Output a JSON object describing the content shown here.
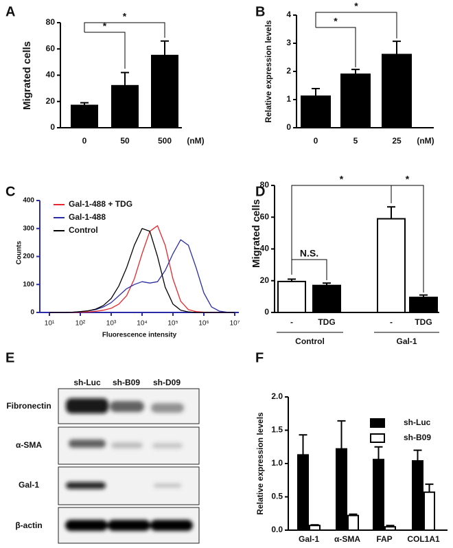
{
  "chart_data": [
    {
      "type": "bar",
      "panel": "A",
      "ylabel": "Migrated cells",
      "x_unit": "(nM)",
      "categories": [
        "0",
        "50",
        "500"
      ],
      "values": [
        17,
        32,
        55
      ],
      "errors": [
        2,
        10,
        11
      ],
      "color": "#000000",
      "ylim": [
        0,
        80
      ],
      "yticks": [
        0,
        20,
        40,
        60,
        80
      ],
      "grid": false,
      "annotations": [
        "*",
        "*"
      ]
    },
    {
      "type": "bar",
      "panel": "B",
      "ylabel": "Relative expression levels",
      "x_unit": "(nM)",
      "categories": [
        "0",
        "5",
        "25"
      ],
      "values": [
        1.12,
        1.9,
        2.6
      ],
      "errors": [
        0.27,
        0.17,
        0.47
      ],
      "color": "#000000",
      "ylim": [
        0,
        4
      ],
      "yticks": [
        0,
        1,
        2,
        3,
        4
      ],
      "grid": false,
      "annotations": [
        "*",
        "*"
      ]
    },
    {
      "type": "line",
      "panel": "C",
      "ylabel": "Counts",
      "xlabel": "Fluorescence intensity",
      "xscale": "log",
      "x": [
        10,
        17.8,
        31.6,
        56.2,
        100,
        178,
        316,
        562,
        1000,
        1778,
        3162,
        5623,
        10000,
        17783,
        31623,
        56234,
        100000,
        177828,
        316228,
        562341,
        1000000,
        1778279,
        3162278,
        5623413,
        10000000
      ],
      "series": [
        {
          "name": "Gal-1-488 + TDG",
          "color": "#e8262b",
          "values": [
            0,
            0,
            0,
            0,
            1,
            2,
            4,
            8,
            15,
            30,
            60,
            120,
            210,
            290,
            310,
            240,
            120,
            40,
            10,
            3,
            1,
            0,
            0,
            0,
            0
          ]
        },
        {
          "name": "Gal-1-488",
          "color": "#2b2ba8",
          "values": [
            0,
            0,
            0,
            1,
            3,
            6,
            10,
            20,
            35,
            60,
            85,
            100,
            110,
            105,
            110,
            150,
            210,
            260,
            240,
            160,
            70,
            20,
            5,
            1,
            0
          ]
        },
        {
          "name": "Control",
          "color": "#000000",
          "values": [
            0,
            0,
            0,
            1,
            3,
            6,
            12,
            25,
            50,
            95,
            160,
            240,
            300,
            290,
            200,
            90,
            30,
            8,
            2,
            0,
            0,
            0,
            0,
            0,
            0
          ]
        }
      ],
      "xlim": [
        10,
        10000000
      ],
      "xticks": [
        {
          "value": 10,
          "label": "10¹"
        },
        {
          "value": 100,
          "label": "10²"
        },
        {
          "value": 1000,
          "label": "10³"
        },
        {
          "value": 10000,
          "label": "10⁴"
        },
        {
          "value": 100000,
          "label": "10⁵"
        },
        {
          "value": 1000000,
          "label": "10⁶"
        },
        {
          "value": 10000000,
          "label": "10⁷"
        }
      ],
      "ylim": [
        0,
        400
      ],
      "yticks": [
        0,
        100,
        200,
        300,
        400
      ],
      "grid": false,
      "axis_color": "#2b2ba8"
    },
    {
      "type": "bar",
      "panel": "D",
      "ylabel": "Migrated cells",
      "categories": [
        "-",
        "TDG",
        "-",
        "TDG"
      ],
      "groups": [
        "Control",
        "Gal-1"
      ],
      "values": [
        19.5,
        17,
        59,
        9.5
      ],
      "errors": [
        1.5,
        1.5,
        7.5,
        1.5
      ],
      "colors": [
        "#ffffff",
        "#000000",
        "#ffffff",
        "#000000"
      ],
      "ylim": [
        0,
        80
      ],
      "yticks": [
        0,
        20,
        40,
        60,
        80
      ],
      "grid": false,
      "annotations": [
        "*",
        "*",
        "N.S."
      ]
    },
    {
      "type": "grouped_bar",
      "panel": "F",
      "ylabel": "Relative expression levels",
      "categories": [
        "Gal-1",
        "α-SMA",
        "FAP",
        "COL1A1"
      ],
      "series": [
        {
          "name": "sh-Luc",
          "color": "#000000",
          "values": [
            1.13,
            1.22,
            1.06,
            1.04
          ],
          "errors": [
            0.3,
            0.42,
            0.19,
            0.16
          ]
        },
        {
          "name": "sh-B09",
          "color": "#ffffff",
          "values": [
            0.07,
            0.22,
            0.05,
            0.57
          ],
          "errors": [
            0.01,
            0.02,
            0.02,
            0.12
          ]
        }
      ],
      "ylim": [
        0,
        2
      ],
      "yticks": [
        {
          "value": 0,
          "label": "0.0"
        },
        0.5,
        {
          "value": 1,
          "label": "1.0"
        },
        1.5,
        {
          "value": 2,
          "label": "2.0"
        }
      ],
      "grid": false,
      "legend": "top-right"
    }
  ],
  "blot": {
    "panel": "E",
    "lanes": [
      "sh-Luc",
      "sh-B09",
      "sh-D09"
    ],
    "rows": [
      "Fibronectin",
      "α-SMA",
      "Gal-1",
      "β-actin"
    ]
  }
}
